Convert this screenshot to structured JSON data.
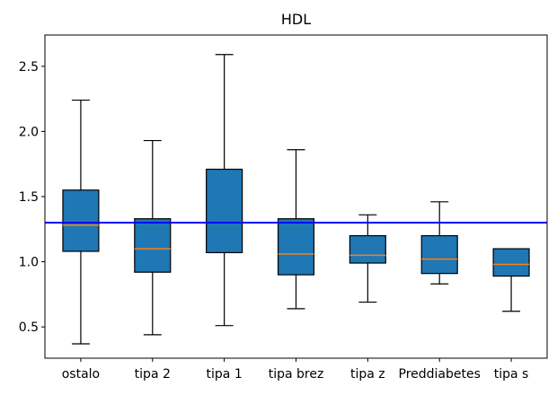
{
  "chart_data": {
    "type": "box",
    "title": "HDL",
    "xlabel": "",
    "ylabel": "",
    "ylim": [
      0.26,
      2.74
    ],
    "yticks": [
      0.5,
      1.0,
      1.5,
      2.0,
      2.5
    ],
    "ytick_labels": [
      "0.5",
      "1.0",
      "1.5",
      "2.0",
      "2.5"
    ],
    "grid": false,
    "categories": [
      "ostalo",
      "tipa 2",
      "tipa 1",
      "tipa brez",
      "tipa z",
      "Preddiabetes",
      "tipa s"
    ],
    "boxes": [
      {
        "whisker_low": 0.37,
        "q1": 1.08,
        "median": 1.28,
        "q3": 1.55,
        "whisker_high": 2.24
      },
      {
        "whisker_low": 0.44,
        "q1": 0.92,
        "median": 1.1,
        "q3": 1.33,
        "whisker_high": 1.93
      },
      {
        "whisker_low": 0.51,
        "q1": 1.07,
        "median": 1.3,
        "q3": 1.71,
        "whisker_high": 2.59
      },
      {
        "whisker_low": 0.64,
        "q1": 0.9,
        "median": 1.06,
        "q3": 1.33,
        "whisker_high": 1.86
      },
      {
        "whisker_low": 0.69,
        "q1": 0.99,
        "median": 1.05,
        "q3": 1.2,
        "whisker_high": 1.36
      },
      {
        "whisker_low": 0.83,
        "q1": 0.91,
        "median": 1.02,
        "q3": 1.2,
        "whisker_high": 1.46
      },
      {
        "whisker_low": 0.62,
        "q1": 0.89,
        "median": 0.98,
        "q3": 1.1,
        "whisker_high": 1.1
      }
    ],
    "reference_line": {
      "y": 1.3
    },
    "colors": {
      "box_fill": "#1f77b4",
      "median": "#ff7f0e",
      "reference_line": "#0000ff",
      "axes": "#000000"
    }
  }
}
